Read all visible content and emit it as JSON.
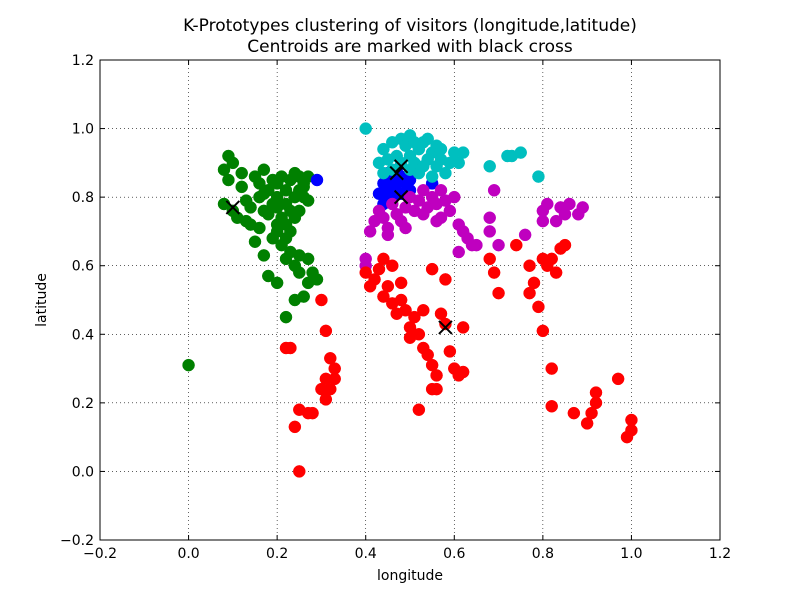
{
  "chart_data": {
    "type": "scatter",
    "title": "K-Prototypes clustering of visitors (longitude,latitude)",
    "subtitle": "Centroids are marked with black cross",
    "xlabel": "longitude",
    "ylabel": "latitude",
    "xlim": [
      -0.2,
      1.2
    ],
    "ylim": [
      -0.2,
      1.2
    ],
    "xticks": [
      -0.2,
      0.0,
      0.2,
      0.4,
      0.6,
      0.8,
      1.0,
      1.2
    ],
    "yticks": [
      -0.2,
      0.0,
      0.2,
      0.4,
      0.6,
      0.8,
      1.0,
      1.2
    ],
    "xtick_labels": [
      "−0.2",
      "0.0",
      "0.2",
      "0.4",
      "0.6",
      "0.8",
      "1.0",
      "1.2"
    ],
    "ytick_labels": [
      "−0.2",
      "0.0",
      "0.2",
      "0.4",
      "0.6",
      "0.8",
      "1.0",
      "1.2"
    ],
    "grid": true,
    "series": [
      {
        "color": "#008000",
        "points": [
          [
            0.0,
            0.31
          ],
          [
            0.09,
            0.92
          ],
          [
            0.08,
            0.88
          ],
          [
            0.09,
            0.85
          ],
          [
            0.08,
            0.78
          ],
          [
            0.1,
            0.76
          ],
          [
            0.1,
            0.9
          ],
          [
            0.12,
            0.87
          ],
          [
            0.12,
            0.83
          ],
          [
            0.13,
            0.79
          ],
          [
            0.11,
            0.74
          ],
          [
            0.13,
            0.73
          ],
          [
            0.14,
            0.77
          ],
          [
            0.15,
            0.86
          ],
          [
            0.16,
            0.84
          ],
          [
            0.16,
            0.8
          ],
          [
            0.17,
            0.88
          ],
          [
            0.18,
            0.82
          ],
          [
            0.17,
            0.76
          ],
          [
            0.19,
            0.78
          ],
          [
            0.2,
            0.8
          ],
          [
            0.2,
            0.84
          ],
          [
            0.21,
            0.86
          ],
          [
            0.22,
            0.82
          ],
          [
            0.23,
            0.85
          ],
          [
            0.24,
            0.87
          ],
          [
            0.25,
            0.86
          ],
          [
            0.26,
            0.84
          ],
          [
            0.27,
            0.86
          ],
          [
            0.25,
            0.82
          ],
          [
            0.24,
            0.8
          ],
          [
            0.22,
            0.78
          ],
          [
            0.23,
            0.76
          ],
          [
            0.21,
            0.74
          ],
          [
            0.2,
            0.72
          ],
          [
            0.22,
            0.72
          ],
          [
            0.2,
            0.7
          ],
          [
            0.19,
            0.68
          ],
          [
            0.21,
            0.66
          ],
          [
            0.22,
            0.62
          ],
          [
            0.24,
            0.6
          ],
          [
            0.25,
            0.58
          ],
          [
            0.27,
            0.62
          ],
          [
            0.28,
            0.58
          ],
          [
            0.27,
            0.55
          ],
          [
            0.29,
            0.56
          ],
          [
            0.26,
            0.51
          ],
          [
            0.24,
            0.5
          ],
          [
            0.22,
            0.45
          ],
          [
            0.2,
            0.55
          ],
          [
            0.18,
            0.57
          ],
          [
            0.17,
            0.63
          ],
          [
            0.15,
            0.67
          ],
          [
            0.16,
            0.71
          ],
          [
            0.14,
            0.72
          ],
          [
            0.26,
            0.8
          ],
          [
            0.27,
            0.79
          ],
          [
            0.25,
            0.76
          ],
          [
            0.24,
            0.74
          ],
          [
            0.23,
            0.7
          ],
          [
            0.22,
            0.68
          ],
          [
            0.18,
            0.75
          ],
          [
            0.17,
            0.81
          ],
          [
            0.26,
            0.83
          ],
          [
            0.19,
            0.85
          ],
          [
            0.2,
            0.77
          ],
          [
            0.23,
            0.64
          ],
          [
            0.25,
            0.63
          ]
        ]
      },
      {
        "color": "#0000ff",
        "points": [
          [
            0.29,
            0.85
          ],
          [
            0.43,
            0.81
          ],
          [
            0.44,
            0.84
          ],
          [
            0.45,
            0.8
          ],
          [
            0.45,
            0.87
          ],
          [
            0.46,
            0.85
          ],
          [
            0.46,
            0.82
          ],
          [
            0.47,
            0.84
          ],
          [
            0.48,
            0.81
          ],
          [
            0.48,
            0.86
          ],
          [
            0.49,
            0.84
          ],
          [
            0.5,
            0.82
          ],
          [
            0.44,
            0.78
          ],
          [
            0.46,
            0.8
          ],
          [
            0.47,
            0.88
          ],
          [
            0.5,
            0.85
          ],
          [
            0.55,
            0.84
          ],
          [
            0.45,
            0.83
          ]
        ]
      },
      {
        "color": "#00bfbf",
        "points": [
          [
            0.4,
            1.0
          ],
          [
            0.43,
            0.9
          ],
          [
            0.44,
            0.94
          ],
          [
            0.45,
            0.91
          ],
          [
            0.46,
            0.96
          ],
          [
            0.47,
            0.92
          ],
          [
            0.48,
            0.97
          ],
          [
            0.49,
            0.95
          ],
          [
            0.5,
            0.98
          ],
          [
            0.5,
            0.92
          ],
          [
            0.51,
            0.9
          ],
          [
            0.52,
            0.94
          ],
          [
            0.53,
            0.96
          ],
          [
            0.54,
            0.97
          ],
          [
            0.54,
            0.91
          ],
          [
            0.55,
            0.93
          ],
          [
            0.56,
            0.95
          ],
          [
            0.56,
            0.89
          ],
          [
            0.57,
            0.91
          ],
          [
            0.58,
            0.87
          ],
          [
            0.59,
            0.9
          ],
          [
            0.6,
            0.93
          ],
          [
            0.61,
            0.9
          ],
          [
            0.62,
            0.93
          ],
          [
            0.5,
            0.88
          ],
          [
            0.52,
            0.87
          ],
          [
            0.55,
            0.86
          ],
          [
            0.48,
            0.9
          ],
          [
            0.46,
            0.88
          ],
          [
            0.53,
            0.89
          ],
          [
            0.68,
            0.89
          ],
          [
            0.72,
            0.92
          ],
          [
            0.73,
            0.92
          ],
          [
            0.75,
            0.93
          ],
          [
            0.79,
            0.86
          ],
          [
            0.44,
            0.87
          ],
          [
            0.51,
            0.96
          ],
          [
            0.57,
            0.94
          ]
        ]
      },
      {
        "color": "#bf00bf",
        "points": [
          [
            0.41,
            0.7
          ],
          [
            0.42,
            0.73
          ],
          [
            0.43,
            0.76
          ],
          [
            0.44,
            0.74
          ],
          [
            0.45,
            0.71
          ],
          [
            0.46,
            0.78
          ],
          [
            0.47,
            0.75
          ],
          [
            0.48,
            0.73
          ],
          [
            0.49,
            0.77
          ],
          [
            0.5,
            0.8
          ],
          [
            0.51,
            0.76
          ],
          [
            0.52,
            0.79
          ],
          [
            0.53,
            0.82
          ],
          [
            0.54,
            0.77
          ],
          [
            0.55,
            0.8
          ],
          [
            0.56,
            0.78
          ],
          [
            0.57,
            0.82
          ],
          [
            0.58,
            0.79
          ],
          [
            0.59,
            0.76
          ],
          [
            0.6,
            0.8
          ],
          [
            0.61,
            0.72
          ],
          [
            0.62,
            0.7
          ],
          [
            0.63,
            0.68
          ],
          [
            0.64,
            0.66
          ],
          [
            0.65,
            0.66
          ],
          [
            0.61,
            0.64
          ],
          [
            0.68,
            0.74
          ],
          [
            0.68,
            0.7
          ],
          [
            0.69,
            0.82
          ],
          [
            0.7,
            0.66
          ],
          [
            0.76,
            0.69
          ],
          [
            0.8,
            0.73
          ],
          [
            0.8,
            0.76
          ],
          [
            0.81,
            0.78
          ],
          [
            0.83,
            0.73
          ],
          [
            0.84,
            0.77
          ],
          [
            0.85,
            0.75
          ],
          [
            0.88,
            0.75
          ],
          [
            0.89,
            0.77
          ],
          [
            0.86,
            0.78
          ],
          [
            0.4,
            0.62
          ],
          [
            0.4,
            0.6
          ],
          [
            0.45,
            0.69
          ],
          [
            0.56,
            0.73
          ],
          [
            0.57,
            0.74
          ],
          [
            0.53,
            0.75
          ],
          [
            0.49,
            0.71
          ]
        ]
      },
      {
        "color": "#ff0000",
        "points": [
          [
            0.25,
            0.0
          ],
          [
            0.24,
            0.13
          ],
          [
            0.25,
            0.18
          ],
          [
            0.27,
            0.17
          ],
          [
            0.22,
            0.36
          ],
          [
            0.23,
            0.36
          ],
          [
            0.3,
            0.5
          ],
          [
            0.31,
            0.41
          ],
          [
            0.3,
            0.24
          ],
          [
            0.31,
            0.27
          ],
          [
            0.32,
            0.33
          ],
          [
            0.33,
            0.3
          ],
          [
            0.33,
            0.27
          ],
          [
            0.31,
            0.21
          ],
          [
            0.32,
            0.24
          ],
          [
            0.28,
            0.17
          ],
          [
            0.4,
            0.58
          ],
          [
            0.42,
            0.56
          ],
          [
            0.43,
            0.59
          ],
          [
            0.44,
            0.51
          ],
          [
            0.45,
            0.54
          ],
          [
            0.46,
            0.49
          ],
          [
            0.47,
            0.46
          ],
          [
            0.48,
            0.5
          ],
          [
            0.49,
            0.47
          ],
          [
            0.5,
            0.42
          ],
          [
            0.51,
            0.45
          ],
          [
            0.52,
            0.4
          ],
          [
            0.53,
            0.36
          ],
          [
            0.54,
            0.34
          ],
          [
            0.55,
            0.31
          ],
          [
            0.56,
            0.28
          ],
          [
            0.57,
            0.46
          ],
          [
            0.58,
            0.43
          ],
          [
            0.58,
            0.56
          ],
          [
            0.59,
            0.35
          ],
          [
            0.6,
            0.3
          ],
          [
            0.61,
            0.28
          ],
          [
            0.62,
            0.29
          ],
          [
            0.62,
            0.42
          ],
          [
            0.55,
            0.24
          ],
          [
            0.56,
            0.24
          ],
          [
            0.5,
            0.39
          ],
          [
            0.52,
            0.18
          ],
          [
            0.55,
            0.59
          ],
          [
            0.68,
            0.62
          ],
          [
            0.69,
            0.58
          ],
          [
            0.7,
            0.52
          ],
          [
            0.74,
            0.66
          ],
          [
            0.77,
            0.6
          ],
          [
            0.77,
            0.52
          ],
          [
            0.78,
            0.55
          ],
          [
            0.79,
            0.48
          ],
          [
            0.8,
            0.41
          ],
          [
            0.8,
            0.62
          ],
          [
            0.81,
            0.6
          ],
          [
            0.82,
            0.62
          ],
          [
            0.82,
            0.3
          ],
          [
            0.82,
            0.19
          ],
          [
            0.83,
            0.58
          ],
          [
            0.84,
            0.65
          ],
          [
            0.85,
            0.66
          ],
          [
            0.87,
            0.17
          ],
          [
            0.9,
            0.14
          ],
          [
            0.91,
            0.17
          ],
          [
            0.92,
            0.2
          ],
          [
            0.92,
            0.23
          ],
          [
            0.97,
            0.27
          ],
          [
            0.99,
            0.1
          ],
          [
            1.0,
            0.12
          ],
          [
            1.0,
            0.15
          ],
          [
            0.44,
            0.62
          ],
          [
            0.46,
            0.6
          ],
          [
            0.48,
            0.55
          ],
          [
            0.41,
            0.54
          ],
          [
            0.53,
            0.47
          ]
        ]
      }
    ],
    "centroids": {
      "color": "#000000",
      "marker": "x",
      "points": [
        [
          0.1,
          0.77
        ],
        [
          0.47,
          0.87
        ],
        [
          0.48,
          0.89
        ],
        [
          0.48,
          0.8
        ],
        [
          0.58,
          0.42
        ]
      ]
    }
  }
}
